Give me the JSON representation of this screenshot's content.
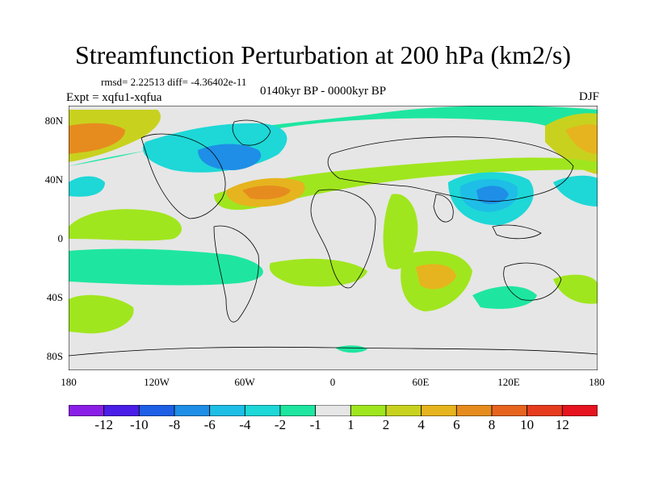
{
  "title": "Streamfunction Perturbation at 200 hPa (km2/s)",
  "stats": "rmsd= 2.22513  diff= -4.36402e-11",
  "experiment": "Expt = xqfu1-xqfua",
  "period": "0140kyr BP - 0000kyr BP",
  "season": "DJF",
  "y_ticks": [
    "80N",
    "40N",
    "0",
    "40S",
    "80S"
  ],
  "x_ticks": [
    "180",
    "120W",
    "60W",
    "0",
    "60E",
    "120E",
    "180"
  ],
  "colorbar": {
    "labels": [
      "-12",
      "-10",
      "-8",
      "-6",
      "-4",
      "-2",
      "-1",
      "1",
      "2",
      "4",
      "6",
      "8",
      "10",
      "12"
    ],
    "colors": [
      "#8a1ee6",
      "#4a1ee6",
      "#1e5fe6",
      "#1e8ee6",
      "#1ebee6",
      "#1ed7d7",
      "#1ee6a0",
      "#e6e6e6",
      "#a0e61e",
      "#c8d21e",
      "#e6b41e",
      "#e68c1e",
      "#e6641e",
      "#e63c1e",
      "#e6141e"
    ]
  }
}
